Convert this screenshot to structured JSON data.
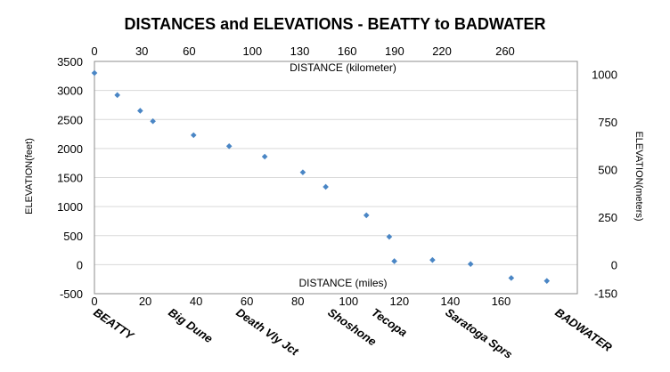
{
  "chart_data": {
    "type": "scatter",
    "title": "DISTANCES and ELEVATIONS - BEATTY to BADWATER",
    "xlabel": "DISTANCE (miles)",
    "x2label": "DISTANCE (kilometer)",
    "ylabel": "ELEVATION(feet)",
    "y2label": "ELEVATION(meters)",
    "xlim": [
      0,
      190
    ],
    "ylim": [
      -500,
      3500
    ],
    "grid": true,
    "x_ticks": [
      "0",
      "20",
      "40",
      "60",
      "80",
      "100",
      "120",
      "140",
      "160"
    ],
    "x2_ticks": [
      "0",
      "30",
      "60",
      "100",
      "130",
      "160",
      "190",
      "220",
      "260"
    ],
    "y_ticks": [
      "-500",
      "0",
      "500",
      "1000",
      "1500",
      "2000",
      "2500",
      "3000",
      "3500"
    ],
    "y2_ticks": [
      "-150",
      "0",
      "250",
      "500",
      "750",
      "1000"
    ],
    "x": [
      0,
      9,
      18,
      23,
      39,
      53,
      67,
      82,
      91,
      107,
      116,
      118,
      133,
      148,
      164,
      178
    ],
    "y": [
      3300,
      2920,
      2650,
      2470,
      2230,
      2040,
      1860,
      1590,
      1340,
      850,
      480,
      60,
      80,
      10,
      -230,
      -280
    ],
    "places": [
      "BEATTY",
      "Big Dune",
      "Death Vly Jct",
      "Shoshone",
      "Tecopa",
      "Saratoga Sprs",
      "BADWATER"
    ],
    "colors": {
      "marker": "#4a86c5",
      "grid": "#d9d9d9",
      "frame": "#8c8c8c"
    }
  }
}
